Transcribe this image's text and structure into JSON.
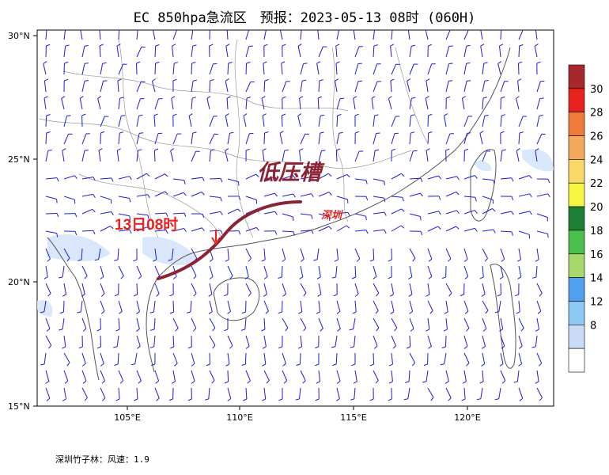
{
  "title": "EC 850hpa急流区　预报：2023-05-13 08时 (060H)",
  "footer": "深圳竹子林：风速：1.9",
  "annotations": {
    "trough_label": "低压槽",
    "time_label": "13日08时",
    "city_label": "深圳"
  },
  "lat_labels": [
    "30°N",
    "25°N",
    "20°N",
    "15°N"
  ],
  "lon_labels": [
    "105°E",
    "110°E",
    "115°E",
    "120°E"
  ],
  "colorbar": {
    "labels": [
      "30",
      "28",
      "26",
      "24",
      "22",
      "20",
      "18",
      "16",
      "14",
      "12",
      "8"
    ],
    "colors": [
      "#a6282d",
      "#e8221e",
      "#f07a3a",
      "#f5a95c",
      "#f9d867",
      "#f5f542",
      "#1d7f34",
      "#4bbf4b",
      "#a6d86a",
      "#4fa0ee",
      "#8ec9f4",
      "#c8dcf7",
      "#ffffff"
    ]
  },
  "colors": {
    "barb": "#1c1cdc",
    "trough": "#8b2335",
    "time_label": "#e8221e",
    "city": "#e8221e",
    "land_border": "#666666",
    "jet_shade": "#d2e3fb"
  }
}
